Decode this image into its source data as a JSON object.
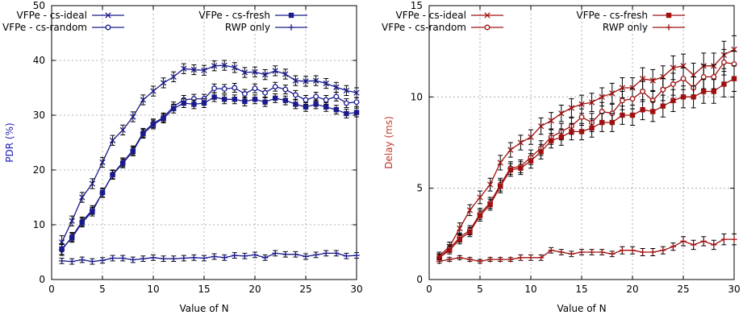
{
  "chart_data": [
    {
      "type": "line",
      "xlabel": "Value of N",
      "ylabel": "PDR (%)",
      "xlim": [
        0,
        30
      ],
      "ylim": [
        0,
        50
      ],
      "xticks": [
        0,
        5,
        10,
        15,
        20,
        25,
        30
      ],
      "yticks": [
        0,
        10,
        20,
        30,
        40,
        50
      ],
      "grid": true,
      "legend": "top, two columns",
      "axis_label_color": "#1f1fb4",
      "series": [
        {
          "name": "VFPe - cs-ideal",
          "marker": "x",
          "color": "#1a1a8c",
          "x": [
            1,
            2,
            3,
            4,
            5,
            6,
            7,
            8,
            9,
            10,
            11,
            12,
            13,
            14,
            15,
            16,
            17,
            18,
            19,
            20,
            21,
            22,
            23,
            24,
            25,
            26,
            27,
            28,
            29,
            30
          ],
          "y": [
            6.8,
            10.7,
            15.0,
            17.5,
            21.4,
            25.4,
            27.3,
            29.7,
            32.8,
            34.4,
            35.9,
            37.0,
            38.5,
            38.3,
            38.2,
            39.0,
            39.1,
            38.7,
            37.8,
            37.9,
            37.4,
            38.1,
            37.5,
            36.3,
            36.2,
            36.3,
            35.8,
            35.1,
            34.5,
            34.1
          ],
          "err": [
            1.2,
            0.9,
            0.9,
            0.9,
            0.9,
            0.9,
            0.9,
            0.9,
            0.9,
            0.9,
            0.9,
            0.9,
            0.9,
            0.9,
            0.9,
            0.9,
            0.9,
            0.9,
            0.9,
            0.9,
            0.9,
            0.9,
            0.9,
            0.9,
            0.9,
            0.9,
            0.9,
            0.9,
            0.9,
            0.9
          ]
        },
        {
          "name": "VFPe - cs-random",
          "marker": "o",
          "color": "#1a1a8c",
          "x": [
            1,
            2,
            3,
            4,
            5,
            6,
            7,
            8,
            9,
            10,
            11,
            12,
            13,
            14,
            15,
            16,
            17,
            18,
            19,
            20,
            21,
            22,
            23,
            24,
            25,
            26,
            27,
            28,
            29,
            30
          ],
          "y": [
            5.4,
            7.8,
            10.6,
            12.7,
            15.8,
            19.2,
            21.4,
            23.6,
            26.8,
            28.5,
            29.6,
            31.6,
            32.8,
            33.0,
            33.0,
            34.9,
            34.8,
            35.0,
            33.9,
            34.9,
            34.1,
            35.2,
            34.7,
            33.7,
            32.8,
            33.4,
            32.8,
            33.4,
            32.2,
            32.4
          ],
          "err": [
            1.0,
            0.8,
            0.8,
            0.8,
            0.8,
            0.8,
            0.8,
            0.8,
            0.8,
            0.8,
            0.8,
            0.8,
            0.8,
            0.8,
            0.8,
            0.8,
            0.8,
            0.8,
            0.8,
            0.8,
            0.8,
            0.8,
            0.8,
            0.8,
            0.8,
            0.8,
            0.8,
            0.8,
            0.8,
            0.8
          ]
        },
        {
          "name": "VFPe - cs-fresh",
          "marker": "square",
          "color": "#1a1a8c",
          "x": [
            1,
            2,
            3,
            4,
            5,
            6,
            7,
            8,
            9,
            10,
            11,
            12,
            13,
            14,
            15,
            16,
            17,
            18,
            19,
            20,
            21,
            22,
            23,
            24,
            25,
            26,
            27,
            28,
            29,
            30
          ],
          "y": [
            5.6,
            7.6,
            10.4,
            12.4,
            15.9,
            19.1,
            21.2,
            23.4,
            26.6,
            28.3,
            29.4,
            31.2,
            32.2,
            32.0,
            32.2,
            33.3,
            32.9,
            32.9,
            32.5,
            32.9,
            32.4,
            33.1,
            32.7,
            32.0,
            31.5,
            32.0,
            31.5,
            31.0,
            30.3,
            30.5
          ],
          "err": [
            1.0,
            0.8,
            0.8,
            0.8,
            0.8,
            0.8,
            0.8,
            0.8,
            0.8,
            0.8,
            0.8,
            0.8,
            0.8,
            0.8,
            0.8,
            0.8,
            0.8,
            0.8,
            0.8,
            0.8,
            0.8,
            0.8,
            0.8,
            0.8,
            0.8,
            0.8,
            0.8,
            0.8,
            0.8,
            0.8
          ]
        },
        {
          "name": "RWP only",
          "marker": "+",
          "color": "#1a1a8c",
          "x": [
            1,
            2,
            3,
            4,
            5,
            6,
            7,
            8,
            9,
            10,
            11,
            12,
            13,
            14,
            15,
            16,
            17,
            18,
            19,
            20,
            21,
            22,
            23,
            24,
            25,
            26,
            27,
            28,
            29,
            30
          ],
          "y": [
            3.4,
            3.3,
            3.6,
            3.3,
            3.5,
            3.9,
            3.9,
            3.6,
            3.8,
            4.0,
            3.8,
            3.8,
            3.9,
            4.0,
            3.9,
            4.2,
            4.0,
            4.4,
            4.3,
            4.5,
            4.0,
            4.8,
            4.6,
            4.6,
            4.2,
            4.5,
            4.8,
            4.8,
            4.3,
            4.4
          ],
          "err": [
            0.5,
            0.5,
            0.5,
            0.5,
            0.5,
            0.5,
            0.5,
            0.5,
            0.5,
            0.5,
            0.5,
            0.5,
            0.5,
            0.5,
            0.5,
            0.5,
            0.5,
            0.5,
            0.5,
            0.5,
            0.5,
            0.5,
            0.5,
            0.5,
            0.5,
            0.5,
            0.5,
            0.5,
            0.5,
            0.5
          ]
        }
      ]
    },
    {
      "type": "line",
      "xlabel": "Value of N",
      "ylabel": "Delay (ms)",
      "xlim": [
        0,
        30
      ],
      "ylim": [
        0,
        15
      ],
      "xticks": [
        0,
        5,
        10,
        15,
        20,
        25,
        30
      ],
      "yticks": [
        0,
        5,
        10,
        15
      ],
      "grid": true,
      "legend": "top, two columns",
      "axis_label_color": "#c0392b",
      "series": [
        {
          "name": "VFPe - cs-ideal",
          "marker": "x",
          "color": "#a01010",
          "x": [
            1,
            2,
            3,
            4,
            5,
            6,
            7,
            8,
            9,
            10,
            11,
            12,
            13,
            14,
            15,
            16,
            17,
            18,
            19,
            20,
            21,
            22,
            23,
            24,
            25,
            26,
            27,
            28,
            29,
            30
          ],
          "y": [
            1.3,
            1.8,
            2.8,
            3.8,
            4.5,
            5.2,
            6.4,
            7.1,
            7.5,
            7.8,
            8.4,
            8.7,
            9.1,
            9.4,
            9.6,
            9.7,
            10.0,
            10.2,
            10.5,
            10.5,
            11.0,
            10.9,
            11.1,
            11.6,
            11.7,
            11.2,
            11.7,
            11.7,
            12.3,
            12.6
          ],
          "err": [
            0.2,
            0.25,
            0.3,
            0.3,
            0.35,
            0.35,
            0.4,
            0.4,
            0.4,
            0.4,
            0.45,
            0.45,
            0.45,
            0.5,
            0.5,
            0.5,
            0.5,
            0.55,
            0.55,
            0.55,
            0.6,
            0.6,
            0.6,
            0.65,
            0.65,
            0.65,
            0.7,
            0.7,
            0.75,
            0.75
          ]
        },
        {
          "name": "VFPe - cs-random",
          "marker": "o",
          "color": "#a01010",
          "x": [
            1,
            2,
            3,
            4,
            5,
            6,
            7,
            8,
            9,
            10,
            11,
            12,
            13,
            14,
            15,
            16,
            17,
            18,
            19,
            20,
            21,
            22,
            23,
            24,
            25,
            26,
            27,
            28,
            29,
            30
          ],
          "y": [
            1.2,
            1.7,
            2.3,
            2.7,
            3.6,
            4.2,
            5.2,
            6.1,
            6.2,
            6.7,
            7.2,
            7.8,
            8.1,
            8.4,
            8.9,
            8.6,
            9.2,
            9.1,
            9.8,
            9.9,
            10.3,
            9.8,
            10.4,
            10.7,
            11.0,
            10.5,
            11.1,
            11.1,
            11.9,
            11.8
          ],
          "err": [
            0.2,
            0.2,
            0.25,
            0.25,
            0.3,
            0.3,
            0.35,
            0.35,
            0.35,
            0.4,
            0.4,
            0.4,
            0.45,
            0.45,
            0.45,
            0.5,
            0.5,
            0.5,
            0.5,
            0.55,
            0.55,
            0.55,
            0.6,
            0.6,
            0.6,
            0.6,
            0.65,
            0.65,
            0.7,
            0.7
          ]
        },
        {
          "name": "VFPe - cs-fresh",
          "marker": "square",
          "color": "#a01010",
          "x": [
            1,
            2,
            3,
            4,
            5,
            6,
            7,
            8,
            9,
            10,
            11,
            12,
            13,
            14,
            15,
            16,
            17,
            18,
            19,
            20,
            21,
            22,
            23,
            24,
            25,
            26,
            27,
            28,
            29,
            30
          ],
          "y": [
            1.2,
            1.6,
            2.2,
            2.6,
            3.5,
            4.1,
            5.1,
            6.0,
            6.1,
            6.5,
            7.0,
            7.6,
            7.8,
            8.1,
            8.1,
            8.3,
            8.6,
            8.6,
            9.0,
            9.0,
            9.3,
            9.2,
            9.5,
            9.8,
            10.0,
            10.0,
            10.3,
            10.3,
            10.7,
            11.0
          ],
          "err": [
            0.2,
            0.2,
            0.25,
            0.25,
            0.3,
            0.3,
            0.35,
            0.35,
            0.35,
            0.4,
            0.4,
            0.4,
            0.45,
            0.45,
            0.45,
            0.5,
            0.5,
            0.5,
            0.5,
            0.55,
            0.55,
            0.55,
            0.6,
            0.6,
            0.6,
            0.6,
            0.65,
            0.65,
            0.7,
            0.7
          ]
        },
        {
          "name": "RWP only",
          "marker": "+",
          "color": "#a01010",
          "x": [
            1,
            2,
            3,
            4,
            5,
            6,
            7,
            8,
            9,
            10,
            11,
            12,
            13,
            14,
            15,
            16,
            17,
            18,
            19,
            20,
            21,
            22,
            23,
            24,
            25,
            26,
            27,
            28,
            29,
            30
          ],
          "y": [
            1.0,
            1.1,
            1.2,
            1.1,
            1.0,
            1.1,
            1.1,
            1.1,
            1.2,
            1.2,
            1.2,
            1.6,
            1.5,
            1.4,
            1.5,
            1.5,
            1.5,
            1.4,
            1.6,
            1.6,
            1.5,
            1.5,
            1.6,
            1.8,
            2.1,
            1.9,
            2.1,
            1.9,
            2.2,
            2.2
          ],
          "err": [
            0.1,
            0.1,
            0.1,
            0.1,
            0.1,
            0.1,
            0.1,
            0.1,
            0.15,
            0.15,
            0.15,
            0.15,
            0.15,
            0.15,
            0.15,
            0.15,
            0.15,
            0.15,
            0.2,
            0.2,
            0.2,
            0.2,
            0.2,
            0.2,
            0.25,
            0.25,
            0.25,
            0.25,
            0.3,
            0.3
          ]
        }
      ]
    }
  ]
}
